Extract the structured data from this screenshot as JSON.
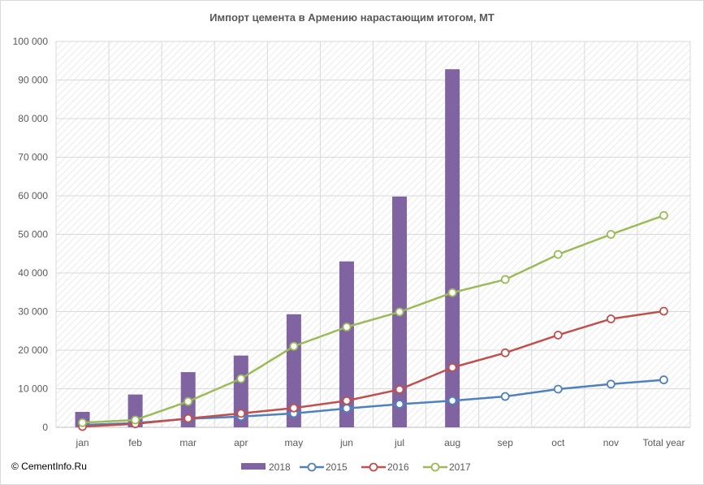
{
  "chart_data": {
    "type": "bar",
    "title": "Импорт цемента в Армению нарастающим  итогом, МТ",
    "xlabel": "",
    "ylabel": "",
    "ylim": [
      0,
      100000
    ],
    "y_ticks": [
      0,
      10000,
      20000,
      30000,
      40000,
      50000,
      60000,
      70000,
      80000,
      90000,
      100000
    ],
    "y_tick_labels": [
      "0",
      "10 000",
      "20 000",
      "30 000",
      "40 000",
      "50 000",
      "60 000",
      "70 000",
      "80 000",
      "90 000",
      "100 000"
    ],
    "categories": [
      "jan",
      "feb",
      "mar",
      "apr",
      "may",
      "jun",
      "jul",
      "aug",
      "sep",
      "oct",
      "nov",
      "Total year"
    ],
    "grid": true,
    "legend_position": "bottom",
    "series": [
      {
        "name": "2018",
        "kind": "bar",
        "color": "#8064a2",
        "values": [
          4000,
          8500,
          14300,
          18600,
          29300,
          43000,
          59800,
          92800,
          null,
          null,
          null,
          null
        ]
      },
      {
        "name": "2015",
        "kind": "line",
        "color": "#4f81bd",
        "values": [
          600,
          1100,
          2200,
          2800,
          3600,
          4900,
          6000,
          6900,
          8000,
          9900,
          11200,
          12300
        ]
      },
      {
        "name": "2016",
        "kind": "line",
        "color": "#c0504d",
        "values": [
          200,
          900,
          2300,
          3600,
          5000,
          6900,
          9800,
          15500,
          19300,
          23900,
          28100,
          30100
        ]
      },
      {
        "name": "2017",
        "kind": "line",
        "color": "#9bbb59",
        "values": [
          1200,
          1900,
          6700,
          12600,
          21000,
          26000,
          29900,
          34900,
          38300,
          44800,
          50000,
          54900
        ]
      }
    ]
  },
  "footer": {
    "credit": "© CementInfo.Ru"
  }
}
